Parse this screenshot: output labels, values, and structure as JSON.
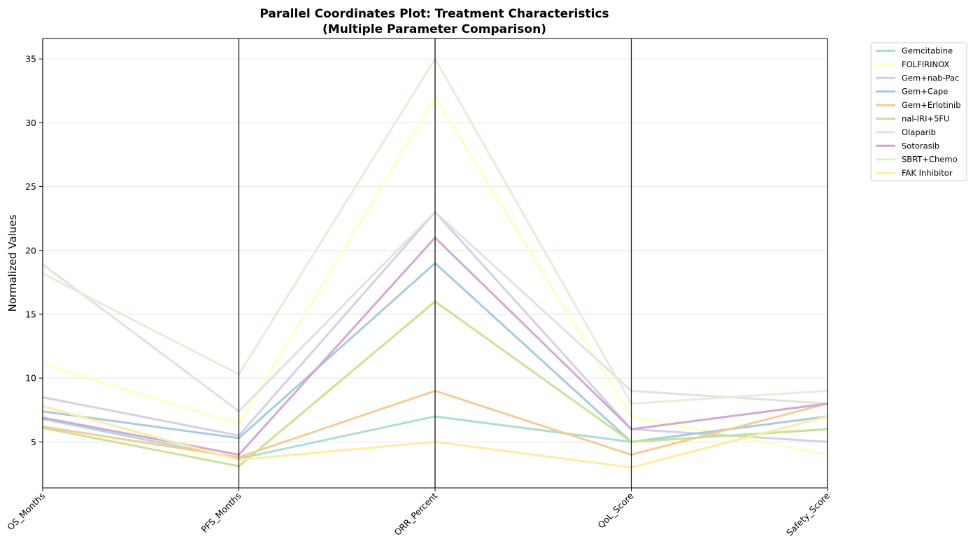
{
  "chart_data": {
    "type": "line",
    "title": "Parallel Coordinates Plot: Treatment Characteristics",
    "subtitle": "(Multiple Parameter Comparison)",
    "xlabel": "",
    "ylabel": "Normalized Values",
    "categories": [
      "OS_Months",
      "PFS_Months",
      "ORR_Percent",
      "QoL_Score",
      "Safety_Score"
    ],
    "ylim": [
      1.4,
      36.6
    ],
    "yticks": [
      5,
      10,
      15,
      20,
      25,
      30,
      35
    ],
    "grid": "horizontal",
    "legend_position": "outside-top-right",
    "series": [
      {
        "name": "Gemcitabine",
        "color": "#a6dcd6",
        "values": [
          6.8,
          3.7,
          7,
          5,
          6
        ]
      },
      {
        "name": "FOLFIRINOX",
        "color": "#ffffc0",
        "values": [
          11.1,
          6.4,
          32,
          7,
          4
        ]
      },
      {
        "name": "Gem+nab-Pac",
        "color": "#d2cde4",
        "values": [
          8.5,
          5.5,
          23,
          6,
          5
        ]
      },
      {
        "name": "Gem+Cape",
        "color": "#a4c8e0",
        "values": [
          7.4,
          5.3,
          19,
          5,
          7
        ]
      },
      {
        "name": "Gem+Erlotinib",
        "color": "#f6c891",
        "values": [
          6.2,
          3.8,
          9,
          4,
          8
        ]
      },
      {
        "name": "nal-IRI+5FU",
        "color": "#c6e38f",
        "values": [
          6.1,
          3.1,
          16,
          5,
          6
        ]
      },
      {
        "name": "Olaparib",
        "color": "#e0e0e0",
        "values": [
          18.9,
          7.4,
          23,
          9,
          8
        ]
      },
      {
        "name": "Sotorasib",
        "color": "#d1a4d1",
        "values": [
          6.9,
          4.0,
          21,
          6,
          8
        ]
      },
      {
        "name": "SBRT+Chemo",
        "color": "#dcf0d6",
        "values": [
          18.2,
          10.3,
          35,
          8,
          9
        ]
      },
      {
        "name": "FAK Inhibitor",
        "color": "#fcec9c",
        "values": [
          7.8,
          3.6,
          5,
          3,
          7
        ]
      }
    ]
  }
}
